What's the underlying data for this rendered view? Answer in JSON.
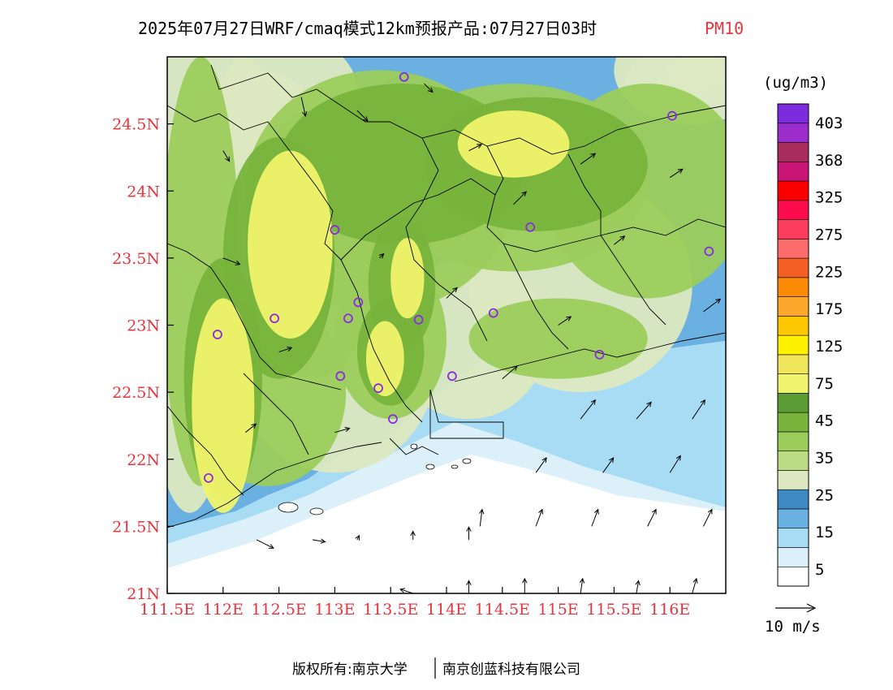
{
  "title": {
    "main": "2025年07月27日WRF/cmaq模式12km预报产品:07月27日03时",
    "pollutant": "PM10"
  },
  "axes": {
    "lon_ticks": [
      "111.5E",
      "112E",
      "112.5E",
      "113E",
      "113.5E",
      "114E",
      "114.5E",
      "115E",
      "115.5E",
      "116E"
    ],
    "lat_ticks": [
      "21N",
      "21.5N",
      "22N",
      "22.5N",
      "23N",
      "23.5N",
      "24N",
      "24.5N"
    ]
  },
  "colorbar": {
    "unit": "(ug/m3)",
    "labels": [
      "5",
      "15",
      "25",
      "35",
      "45",
      "75",
      "125",
      "175",
      "225",
      "275",
      "325",
      "368",
      "403"
    ],
    "colors": [
      "#ffffff",
      "#dcf0fa",
      "#a8dcf4",
      "#6ab0e0",
      "#3e88c4",
      "#dce8c0",
      "#bcdc84",
      "#9ccc5c",
      "#78b43c",
      "#5c9c34",
      "#f0f46c",
      "#f0e65c",
      "#fff000",
      "#fec800",
      "#fca82c",
      "#fc8a04",
      "#f46024",
      "#fc6c6c",
      "#fc3c5c",
      "#fc0c4c",
      "#fc0000",
      "#c81474",
      "#a82c5c",
      "#9c2ccc",
      "#7c2cdc"
    ]
  },
  "wind_legend": {
    "label": "10 m/s"
  },
  "footer": {
    "left": "版权所有:南京大学",
    "right": "南京创蓝科技有限公司"
  },
  "stations": [
    {
      "lon": 113.62,
      "lat": 24.85
    },
    {
      "lon": 116.02,
      "lat": 24.56
    },
    {
      "lon": 113.0,
      "lat": 23.71
    },
    {
      "lon": 114.75,
      "lat": 23.73
    },
    {
      "lon": 116.35,
      "lat": 23.55
    },
    {
      "lon": 112.46,
      "lat": 23.05
    },
    {
      "lon": 113.12,
      "lat": 23.05
    },
    {
      "lon": 113.21,
      "lat": 23.17
    },
    {
      "lon": 113.75,
      "lat": 23.04
    },
    {
      "lon": 114.42,
      "lat": 23.09
    },
    {
      "lon": 111.95,
      "lat": 22.93
    },
    {
      "lon": 113.05,
      "lat": 22.62
    },
    {
      "lon": 113.39,
      "lat": 22.53
    },
    {
      "lon": 114.05,
      "lat": 22.62
    },
    {
      "lon": 113.52,
      "lat": 22.3
    },
    {
      "lon": 115.37,
      "lat": 22.78
    },
    {
      "lon": 111.87,
      "lat": 21.86
    }
  ],
  "pollution_fields": [
    {
      "level": 0,
      "blobs": [
        [
          111.55,
          24.6,
          0.9,
          0.6
        ],
        [
          112.3,
          24.0,
          0.8,
          0.9
        ],
        [
          111.7,
          23.1,
          0.4,
          1.5
        ],
        [
          113.0,
          22.7,
          0.9,
          0.8
        ],
        [
          114.2,
          22.9,
          0.7,
          0.6
        ],
        [
          115.2,
          23.3,
          1.0,
          0.8
        ],
        [
          116.2,
          24.9,
          0.7,
          0.4
        ],
        [
          112.6,
          24.75,
          0.6,
          0.4
        ]
      ]
    },
    {
      "level": 1,
      "blobs": [
        [
          111.8,
          23.4,
          0.35,
          1.6
        ],
        [
          112.8,
          23.6,
          0.6,
          1.0
        ],
        [
          113.4,
          24.0,
          1.2,
          0.9
        ],
        [
          114.6,
          24.1,
          1.2,
          0.7
        ],
        [
          115.8,
          24.0,
          0.9,
          0.8
        ],
        [
          113.5,
          22.9,
          0.5,
          0.6
        ],
        [
          112.4,
          22.5,
          0.7,
          0.7
        ],
        [
          115.0,
          22.9,
          0.8,
          0.3
        ]
      ]
    },
    {
      "level": 2,
      "blobs": [
        [
          112.0,
          22.6,
          0.35,
          0.9
        ],
        [
          112.5,
          23.5,
          0.5,
          0.9
        ],
        [
          113.6,
          24.2,
          1.1,
          0.6
        ],
        [
          114.8,
          24.2,
          1.0,
          0.5
        ],
        [
          113.6,
          23.3,
          0.3,
          0.5
        ],
        [
          113.5,
          22.8,
          0.3,
          0.4
        ]
      ]
    },
    {
      "level": 3,
      "blobs": [
        [
          112.0,
          22.4,
          0.28,
          0.8
        ],
        [
          112.6,
          23.6,
          0.38,
          0.7
        ],
        [
          113.65,
          23.35,
          0.15,
          0.3
        ],
        [
          113.45,
          22.75,
          0.17,
          0.28
        ],
        [
          114.6,
          24.35,
          0.5,
          0.25
        ]
      ]
    }
  ],
  "wind_samples": [
    {
      "lon": 112.7,
      "lat": 24.7,
      "u": 0.2,
      "v": -0.9
    },
    {
      "lon": 113.2,
      "lat": 24.6,
      "u": 0.5,
      "v": -0.5
    },
    {
      "lon": 114.2,
      "lat": 24.3,
      "u": 0.6,
      "v": 0.3
    },
    {
      "lon": 115.2,
      "lat": 24.2,
      "u": 0.7,
      "v": 0.5
    },
    {
      "lon": 116.0,
      "lat": 24.1,
      "u": 0.6,
      "v": 0.4
    },
    {
      "lon": 114.6,
      "lat": 23.9,
      "u": 0.6,
      "v": 0.6
    },
    {
      "lon": 115.5,
      "lat": 23.6,
      "u": 0.5,
      "v": 0.4
    },
    {
      "lon": 112.0,
      "lat": 23.5,
      "u": 0.8,
      "v": -0.3
    },
    {
      "lon": 113.4,
      "lat": 23.5,
      "u": 0.2,
      "v": 0.2
    },
    {
      "lon": 114.0,
      "lat": 23.2,
      "u": 0.5,
      "v": 0.5
    },
    {
      "lon": 115.0,
      "lat": 23.0,
      "u": 0.6,
      "v": 0.4
    },
    {
      "lon": 116.3,
      "lat": 23.1,
      "u": 0.8,
      "v": 0.6
    },
    {
      "lon": 112.5,
      "lat": 22.8,
      "u": 0.6,
      "v": 0.2
    },
    {
      "lon": 114.5,
      "lat": 22.6,
      "u": 0.7,
      "v": 0.6
    },
    {
      "lon": 115.2,
      "lat": 22.3,
      "u": 0.7,
      "v": 0.9
    },
    {
      "lon": 115.7,
      "lat": 22.3,
      "u": 0.7,
      "v": 0.8
    },
    {
      "lon": 116.2,
      "lat": 22.3,
      "u": 0.6,
      "v": 0.9
    },
    {
      "lon": 114.8,
      "lat": 21.9,
      "u": 0.5,
      "v": 0.7
    },
    {
      "lon": 115.4,
      "lat": 21.9,
      "u": 0.5,
      "v": 0.7
    },
    {
      "lon": 116.0,
      "lat": 21.9,
      "u": 0.5,
      "v": 0.8
    },
    {
      "lon": 114.3,
      "lat": 21.5,
      "u": 0.1,
      "v": 0.8
    },
    {
      "lon": 114.8,
      "lat": 21.5,
      "u": 0.3,
      "v": 0.8
    },
    {
      "lon": 115.3,
      "lat": 21.5,
      "u": 0.3,
      "v": 0.8
    },
    {
      "lon": 115.8,
      "lat": 21.5,
      "u": 0.4,
      "v": 0.8
    },
    {
      "lon": 116.3,
      "lat": 21.5,
      "u": 0.4,
      "v": 0.8
    },
    {
      "lon": 113.2,
      "lat": 21.4,
      "u": 0.1,
      "v": 0.2
    },
    {
      "lon": 113.7,
      "lat": 21.4,
      "u": 0.0,
      "v": 0.4
    },
    {
      "lon": 114.2,
      "lat": 21.4,
      "u": 0.0,
      "v": 0.6
    },
    {
      "lon": 112.3,
      "lat": 21.4,
      "u": 0.8,
      "v": -0.4
    },
    {
      "lon": 112.8,
      "lat": 21.4,
      "u": 0.6,
      "v": -0.1
    },
    {
      "lon": 114.2,
      "lat": 21.0,
      "u": 0.0,
      "v": 0.6
    },
    {
      "lon": 114.7,
      "lat": 21.0,
      "u": 0.0,
      "v": 0.7
    },
    {
      "lon": 115.2,
      "lat": 21.0,
      "u": 0.1,
      "v": 0.7
    },
    {
      "lon": 115.7,
      "lat": 21.0,
      "u": 0.1,
      "v": 0.6
    },
    {
      "lon": 116.2,
      "lat": 21.0,
      "u": 0.2,
      "v": 0.7
    },
    {
      "lon": 113.7,
      "lat": 21.0,
      "u": -0.6,
      "v": 0.2
    },
    {
      "lon": 112.2,
      "lat": 22.2,
      "u": 0.5,
      "v": 0.4
    },
    {
      "lon": 113.0,
      "lat": 22.2,
      "u": 0.7,
      "v": 0.2
    },
    {
      "lon": 112.0,
      "lat": 24.3,
      "u": 0.3,
      "v": -0.5
    },
    {
      "lon": 113.8,
      "lat": 24.8,
      "u": 0.4,
      "v": -0.4
    }
  ]
}
